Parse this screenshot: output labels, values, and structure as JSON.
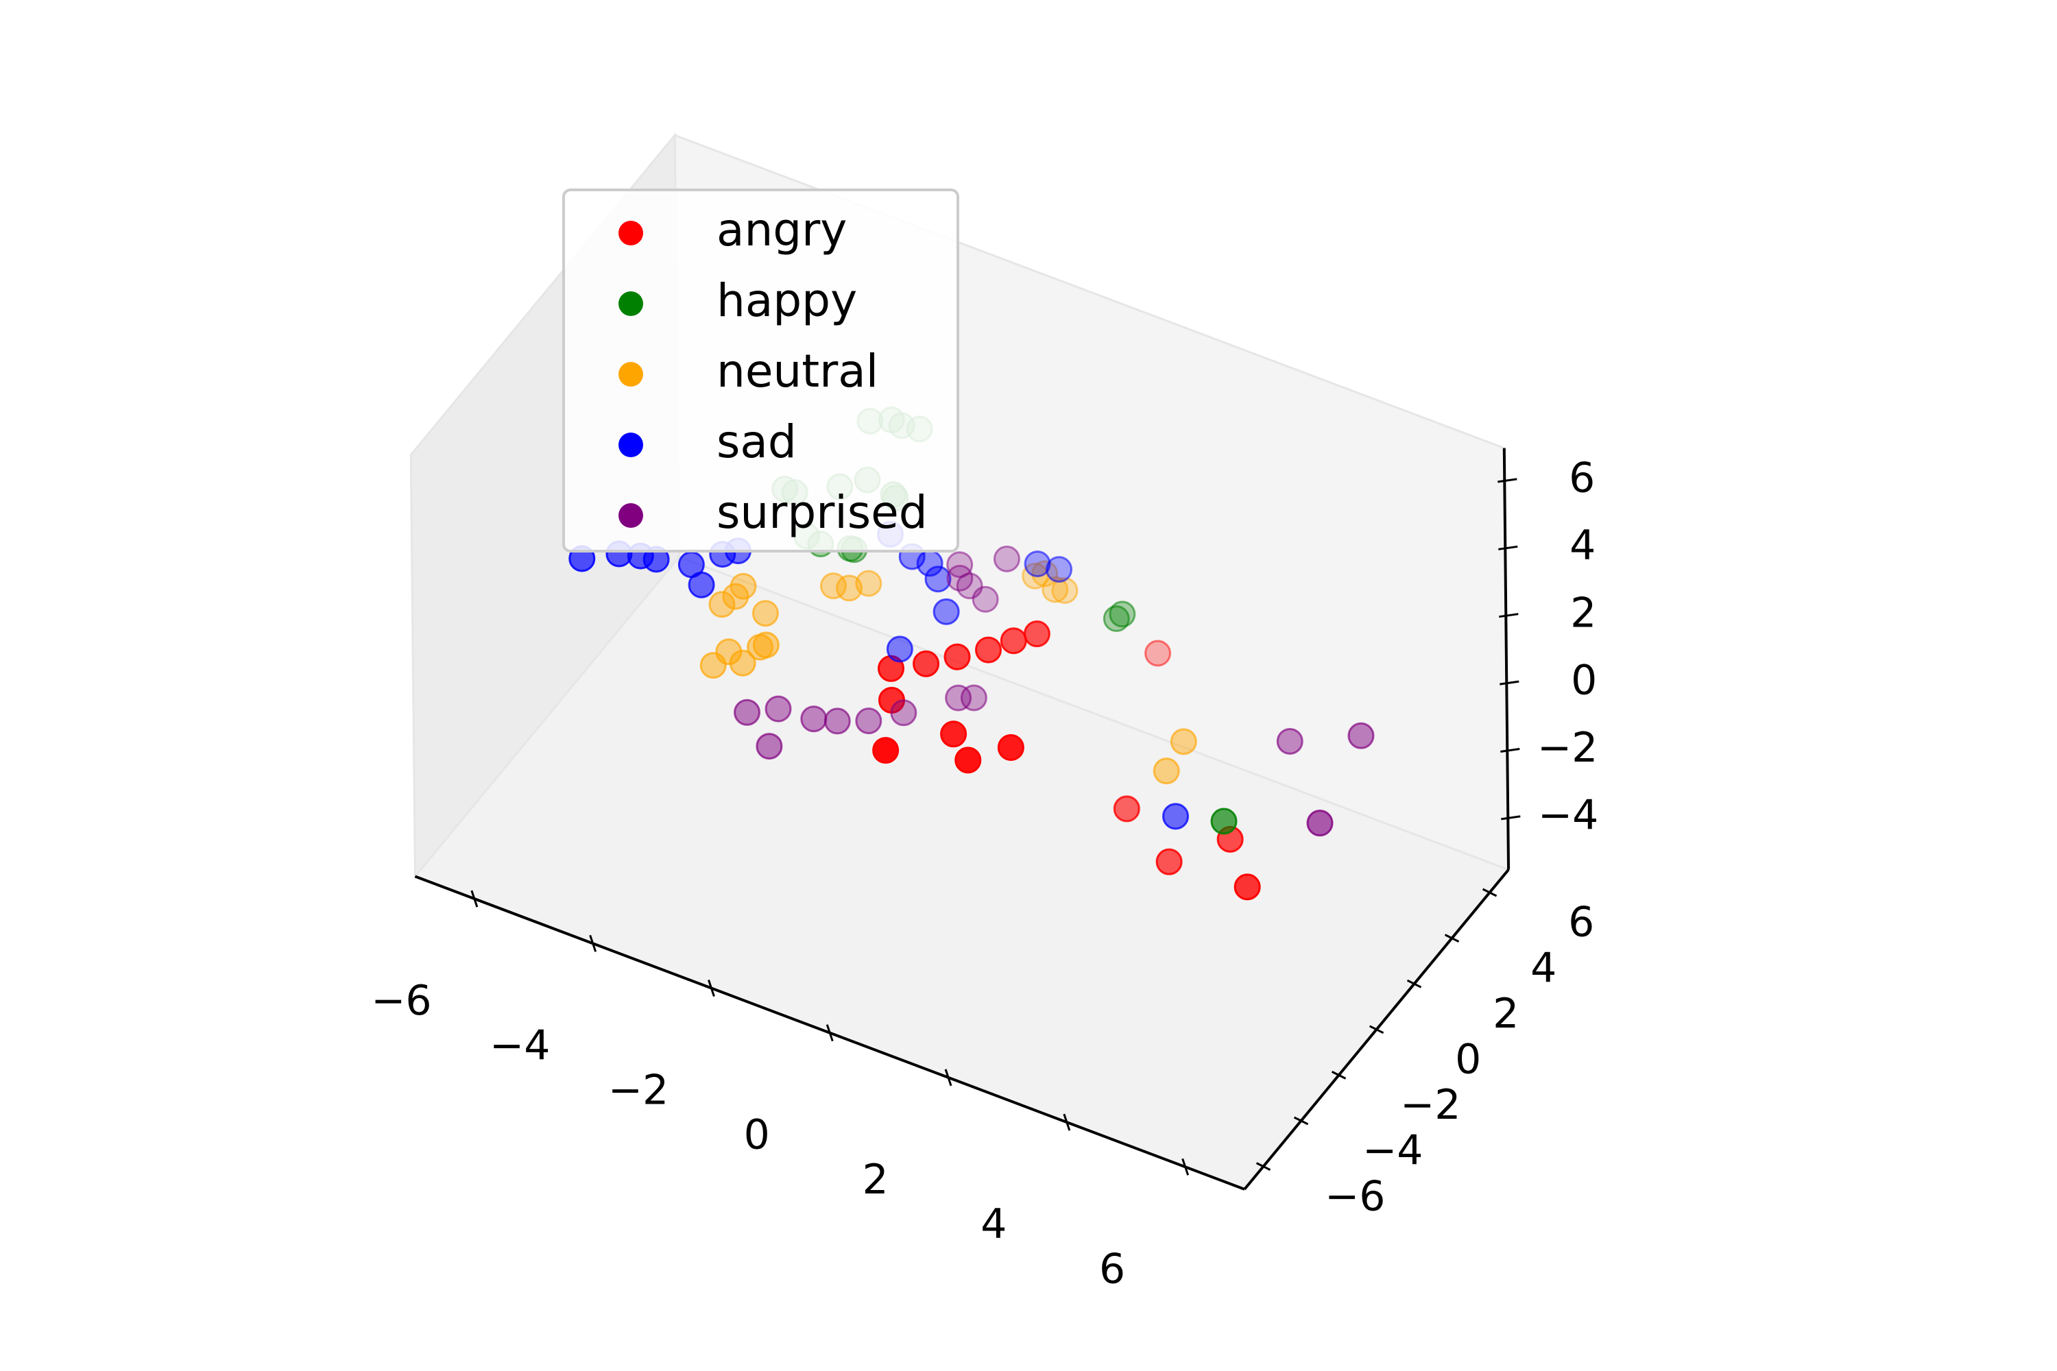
{
  "chart_data": {
    "type": "scatter",
    "projection": "3d",
    "title": "",
    "xlabel": "",
    "ylabel": "",
    "zlabel": "",
    "xlim": [
      -7,
      7
    ],
    "ylim": [
      -7,
      7
    ],
    "zlim": [
      -5.5,
      7
    ],
    "x_ticks": [
      "−6",
      "−4",
      "−2",
      "0",
      "2",
      "4",
      "6"
    ],
    "y_ticks": [
      "−6",
      "−4",
      "−2",
      "0",
      "2",
      "4",
      "6"
    ],
    "z_ticks": [
      "−4",
      "−2",
      "0",
      "2",
      "4",
      "6"
    ],
    "legend_position": "upper-left",
    "series": [
      {
        "name": "angry",
        "color": "#ff0000",
        "points": [
          [
            0.8,
            -6.4,
            3.0
          ],
          [
            2.0,
            -5.8,
            3.1
          ],
          [
            1.5,
            -5.0,
            3.0
          ],
          [
            2.6,
            -5.4,
            3.6
          ],
          [
            0.2,
            -4.2,
            2.6
          ],
          [
            0.0,
            -3.6,
            3.0
          ],
          [
            0.4,
            -3.0,
            3.0
          ],
          [
            0.8,
            -2.6,
            3.2
          ],
          [
            1.2,
            -2.2,
            3.4
          ],
          [
            1.5,
            -1.8,
            3.6
          ],
          [
            1.8,
            -1.5,
            3.8
          ],
          [
            5.2,
            -2.0,
            0.3
          ],
          [
            4.0,
            -1.5,
            -1.5
          ],
          [
            3.0,
            -0.6,
            -1.2
          ],
          [
            2.0,
            4.2,
            -0.5
          ],
          [
            6.0,
            -3.6,
            0.5
          ]
        ]
      },
      {
        "name": "happy",
        "color": "#008000",
        "points": [
          [
            -4.0,
            3.3,
            1.0
          ],
          [
            -3.8,
            3.2,
            1.1
          ],
          [
            -3.1,
            3.4,
            1.6
          ],
          [
            -2.6,
            3.3,
            2.2
          ],
          [
            -2.0,
            2.8,
            2.5
          ],
          [
            -1.9,
            2.6,
            2.6
          ],
          [
            -3.8,
            3.8,
            -0.6
          ],
          [
            -3.5,
            3.6,
            -0.5
          ],
          [
            -3.0,
            3.6,
            -0.3
          ],
          [
            -2.9,
            3.5,
            -0.2
          ],
          [
            -2.9,
            4.4,
            3.0
          ],
          [
            -2.6,
            4.6,
            3.1
          ],
          [
            -2.3,
            4.2,
            3.4
          ],
          [
            -2.0,
            4.2,
            3.5
          ],
          [
            1.5,
            3.6,
            0.6
          ],
          [
            1.6,
            3.6,
            0.8
          ],
          [
            5.0,
            -1.7,
            0.5
          ]
        ]
      },
      {
        "name": "neutral",
        "color": "#ffa500",
        "points": [
          [
            -4.5,
            1.0,
            -3.0
          ],
          [
            -4.3,
            1.2,
            -2.6
          ],
          [
            -4.0,
            1.0,
            -2.6
          ],
          [
            -3.8,
            1.3,
            -2.2
          ],
          [
            -3.6,
            1.0,
            -1.8
          ],
          [
            -4.6,
            1.8,
            -1.8
          ],
          [
            -4.4,
            1.9,
            -1.5
          ],
          [
            -4.3,
            2.0,
            -1.2
          ],
          [
            -3.8,
            1.6,
            -1.4
          ],
          [
            -3.0,
            2.7,
            -0.8
          ],
          [
            -2.7,
            2.6,
            -0.6
          ],
          [
            -2.5,
            3.0,
            -0.6
          ],
          [
            0.0,
            4.0,
            0.6
          ],
          [
            0.1,
            4.2,
            0.6
          ],
          [
            0.4,
            3.8,
            0.6
          ],
          [
            0.5,
            4.0,
            0.5
          ],
          [
            3.0,
            1.5,
            -1.5
          ],
          [
            3.2,
            1.8,
            -0.7
          ]
        ]
      },
      {
        "name": "sad",
        "color": "#0000ff",
        "points": [
          [
            -5.8,
            -1.8,
            1.2
          ],
          [
            -5.3,
            -1.4,
            1.4
          ],
          [
            -5.0,
            -1.2,
            1.4
          ],
          [
            -4.8,
            -1.0,
            1.3
          ],
          [
            -4.4,
            -0.4,
            1.0
          ],
          [
            -4.2,
            -0.5,
            0.6
          ],
          [
            -4.0,
            0.0,
            1.3
          ],
          [
            -3.8,
            0.2,
            1.4
          ],
          [
            -1.8,
            2.0,
            2.0
          ],
          [
            -1.5,
            2.2,
            1.4
          ],
          [
            -1.2,
            2.2,
            1.4
          ],
          [
            -1.0,
            2.0,
            1.2
          ],
          [
            0.3,
            3.2,
            1.7
          ],
          [
            0.6,
            3.4,
            1.6
          ],
          [
            -1.4,
            1.2,
            -0.6
          ],
          [
            -0.8,
            1.8,
            0.5
          ],
          [
            3.6,
            0.1,
            -1.5
          ]
        ]
      },
      {
        "name": "surprised",
        "color": "#800080",
        "points": [
          [
            -4.0,
            1.2,
            -4.2
          ],
          [
            -3.6,
            1.6,
            -4.1
          ],
          [
            -3.5,
            0.8,
            -4.6
          ],
          [
            -3.0,
            1.6,
            -4.0
          ],
          [
            -2.6,
            1.6,
            -3.8
          ],
          [
            -2.2,
            2.0,
            -3.8
          ],
          [
            -1.8,
            2.6,
            -3.7
          ],
          [
            -1.0,
            3.0,
            -3.0
          ],
          [
            -0.8,
            3.2,
            -3.0
          ],
          [
            -1.6,
            5.0,
            -0.8
          ],
          [
            -1.6,
            5.0,
            -1.2
          ],
          [
            -1.5,
            5.2,
            -1.5
          ],
          [
            -1.3,
            5.4,
            -1.9
          ],
          [
            -0.8,
            5.0,
            -0.1
          ],
          [
            5.0,
            1.8,
            0.5
          ],
          [
            6.4,
            -1.0,
            0.9
          ],
          [
            6.4,
            1.2,
            2.0
          ]
        ]
      }
    ]
  }
}
